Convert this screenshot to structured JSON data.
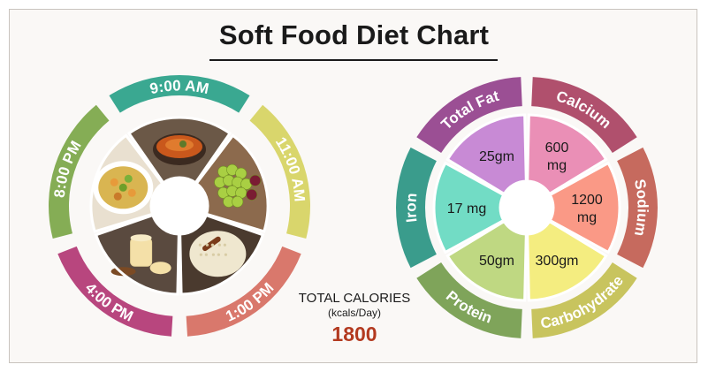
{
  "title": "Soft Food Diet Chart",
  "meals": [
    {
      "time": "9:00 AM",
      "color": "#3aa891",
      "food": "bowl-of-soup-icon"
    },
    {
      "time": "11:00 AM",
      "color": "#d9d66c",
      "food": "grapes-icon"
    },
    {
      "time": "1:00 PM",
      "color": "#d9786c",
      "food": "rice-pudding-icon"
    },
    {
      "time": "4:00 PM",
      "color": "#b8467e",
      "food": "custard-cups-icon"
    },
    {
      "time": "8:00 PM",
      "color": "#85ad55",
      "food": "vegetable-curry-icon"
    }
  ],
  "calories": {
    "label": "TOTAL CALORIES",
    "unit": "(kcals/Day)",
    "value": "1800"
  },
  "nutrients": [
    {
      "name": "Total Fat",
      "value": "25gm",
      "outer": "#9b4f94",
      "inner": "#c88ad5"
    },
    {
      "name": "Calcium",
      "value": "600\nmg",
      "outer": "#b0506d",
      "inner": "#ea8fb6"
    },
    {
      "name": "Sodium",
      "value": "1200\nmg",
      "outer": "#c66a5e",
      "inner": "#fa9986"
    },
    {
      "name": "Carbohydrate",
      "value": "300gm",
      "outer": "#c8c45e",
      "inner": "#f4ed80"
    },
    {
      "name": "Protein",
      "value": "50gm",
      "outer": "#7fa45a",
      "inner": "#bfd882"
    },
    {
      "name": "Iron",
      "value": "17 mg",
      "outer": "#3a9c8c",
      "inner": "#72dcc5"
    }
  ]
}
